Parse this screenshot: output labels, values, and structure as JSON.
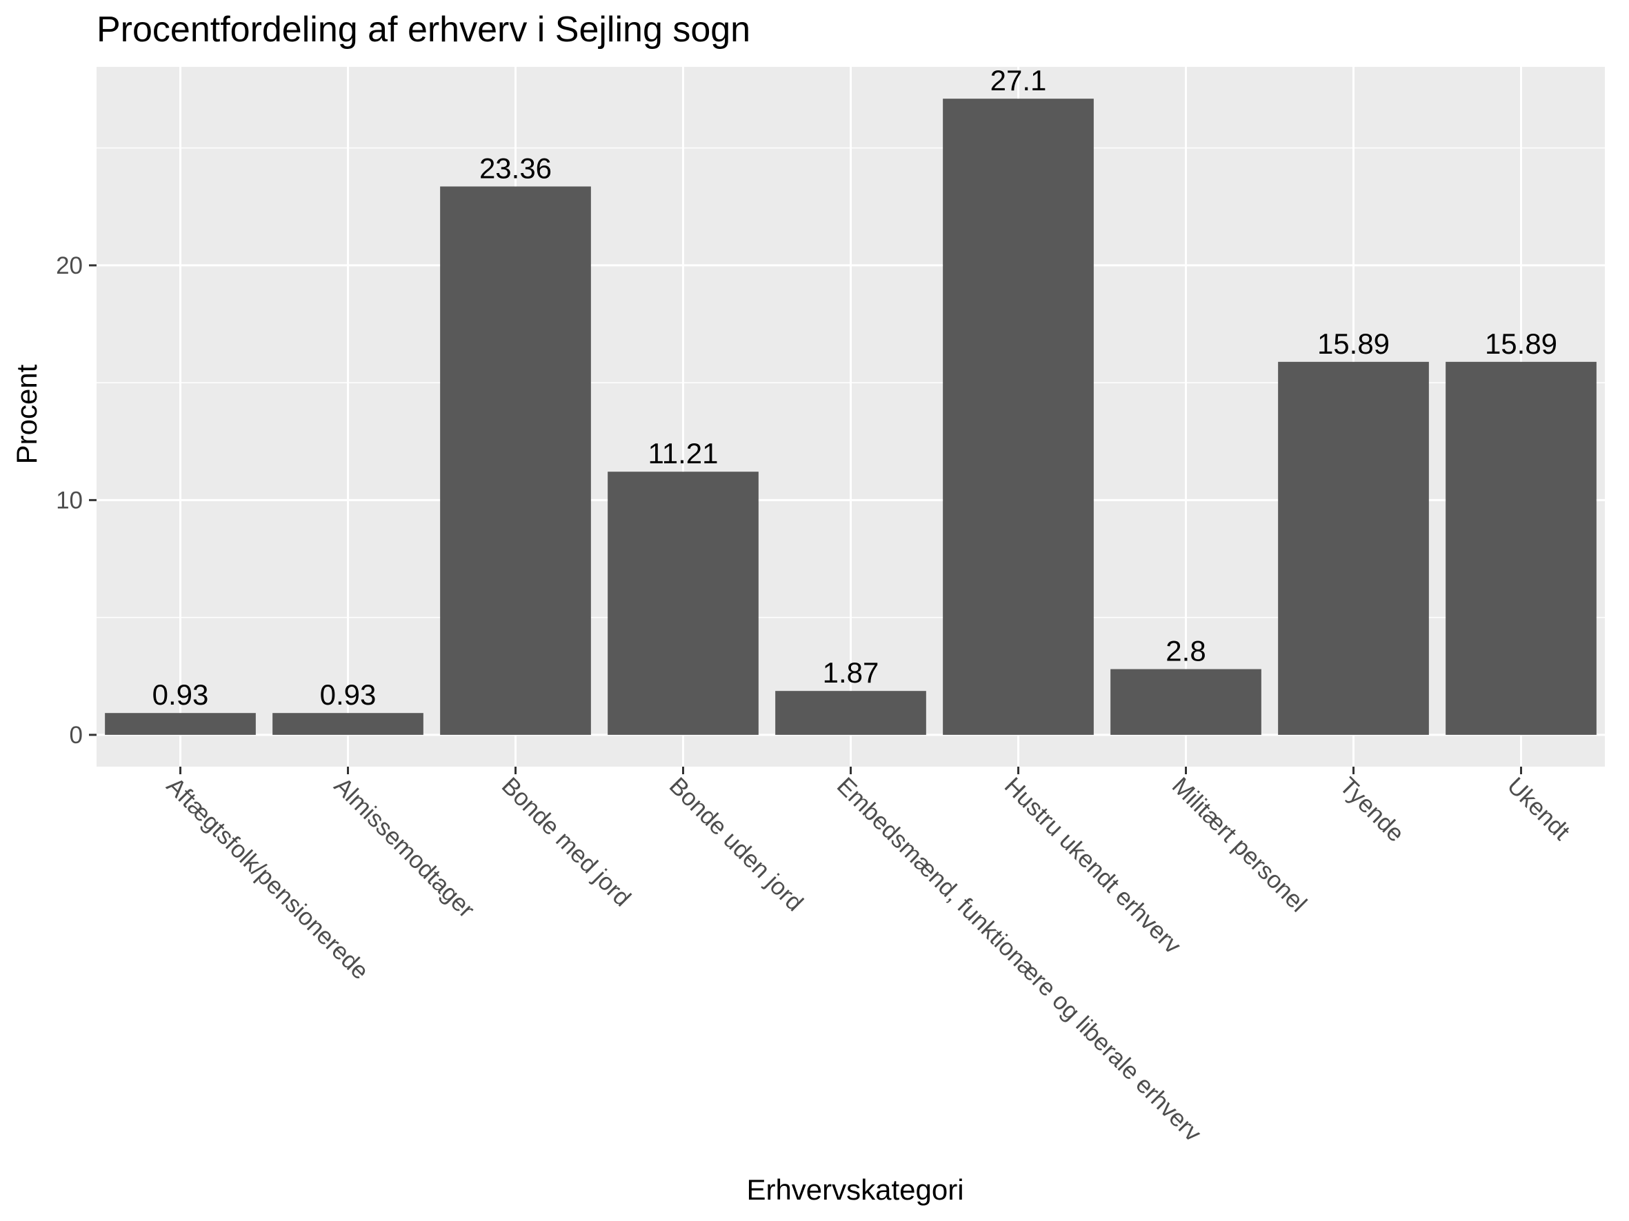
{
  "chart_data": {
    "type": "bar",
    "title": "Procentfordeling af erhverv i Sejling sogn",
    "xlabel": "Erhvervskategori",
    "ylabel": "Procent",
    "categories": [
      "Aftægtsfolk/pensionerede",
      "Almissemodtager",
      "Bonde med jord",
      "Bonde uden jord",
      "Embedsmænd, funktionære og liberale erhverv",
      "Hustru ukendt erhverv",
      "Militært personel",
      "Tyende",
      "Ukendt"
    ],
    "values": [
      0.93,
      0.93,
      23.36,
      11.21,
      1.87,
      27.1,
      2.8,
      15.89,
      15.89
    ],
    "value_labels": [
      "0.93",
      "0.93",
      "23.36",
      "11.21",
      "1.87",
      "27.1",
      "2.8",
      "15.89",
      "15.89"
    ],
    "ylim": [
      -1.355,
      28.455
    ],
    "y_major_ticks": [
      0,
      10,
      20
    ],
    "y_tick_labels": [
      "0",
      "10",
      "20"
    ],
    "y_minor_ticks": [
      5,
      15,
      25
    ],
    "grid": true,
    "legend": "none",
    "x_tick_rotation_deg": 45,
    "colors": {
      "bar": "#595959",
      "panel_background": "#ebebeb",
      "grid": "#ffffff",
      "tick_mark": "#333333",
      "tick_label": "#4d4d4d",
      "text": "#000000"
    }
  }
}
